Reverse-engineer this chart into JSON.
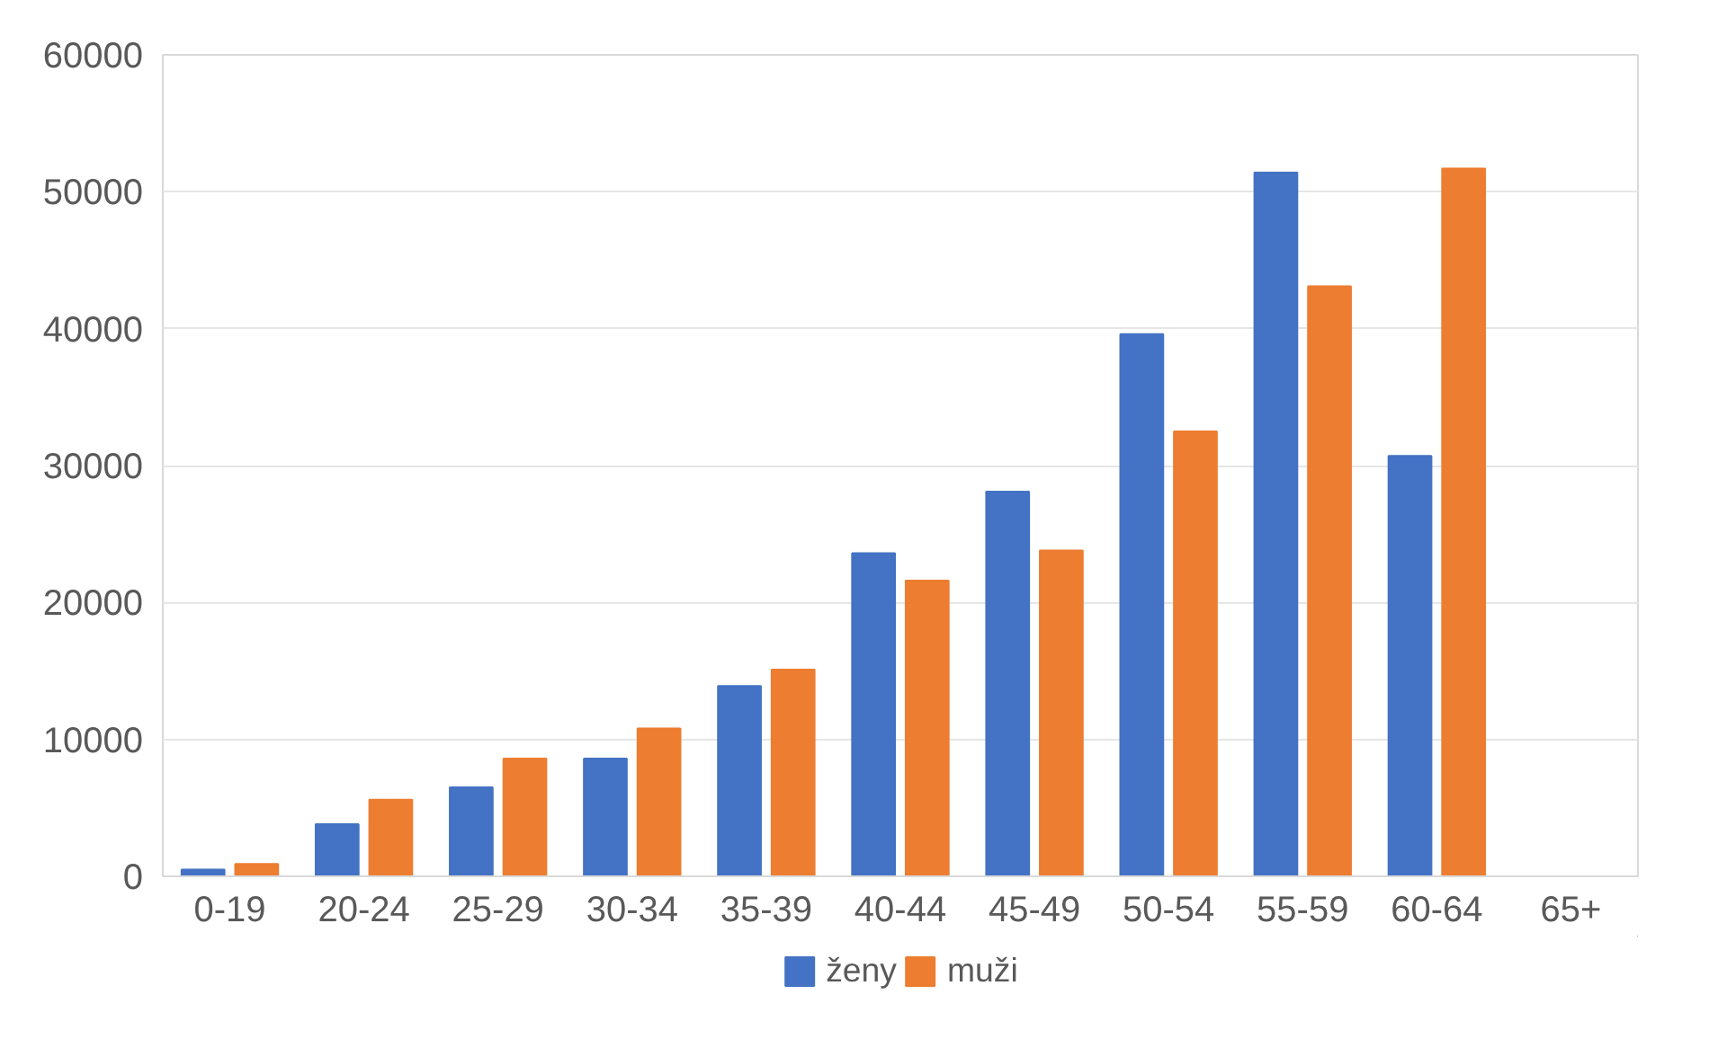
{
  "chart_data": {
    "type": "bar",
    "categories": [
      "0-19",
      "20-24",
      "25-29",
      "30-34",
      "35-39",
      "40-44",
      "45-49",
      "50-54",
      "55-59",
      "60-64",
      "65+"
    ],
    "series": [
      {
        "name": "ženy",
        "color": "#4472c4",
        "values": [
          500,
          3800,
          6500,
          8600,
          13900,
          23600,
          28100,
          39600,
          51400,
          30700,
          0
        ]
      },
      {
        "name": "muži",
        "color": "#ed7d31",
        "values": [
          900,
          5600,
          8600,
          10800,
          15100,
          21600,
          23800,
          32500,
          43100,
          51700,
          0
        ]
      }
    ],
    "ylim": [
      0,
      60000
    ],
    "yticks": [
      0,
      10000,
      20000,
      30000,
      40000,
      50000,
      60000
    ],
    "grid": "y",
    "legend": "bottom"
  }
}
